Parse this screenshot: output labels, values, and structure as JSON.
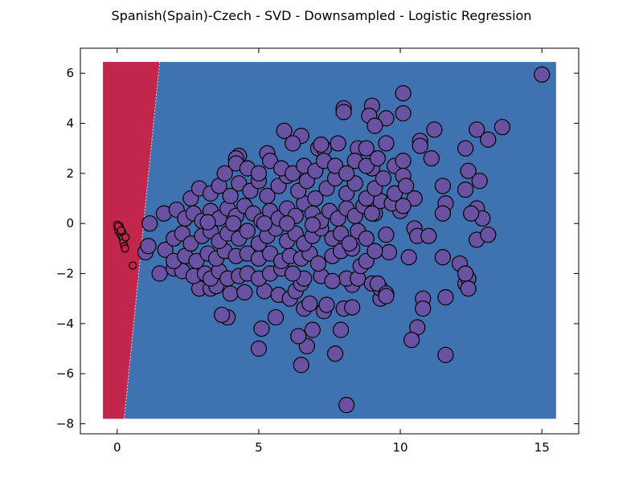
{
  "chart_data": {
    "type": "scatter",
    "title": "Spanish(Spain)-Czech - SVD - Downsampled - Logistic Regression",
    "xlabel": "",
    "ylabel": "",
    "xlim": [
      -1.3,
      16.3
    ],
    "ylim": [
      -8.4,
      7.0
    ],
    "xticks": [
      0,
      5,
      10,
      15
    ],
    "yticks": [
      -8,
      -6,
      -4,
      -2,
      0,
      2,
      4,
      6
    ],
    "xtick_labels": [
      "0",
      "5",
      "10",
      "15"
    ],
    "ytick_labels": [
      "−8",
      "−6",
      "−4",
      "−2",
      "0",
      "2",
      "4",
      "6"
    ],
    "grid": false,
    "legend": "none",
    "decision_region": {
      "x_range": [
        -0.5,
        15.5
      ],
      "y_range": [
        -7.8,
        6.45
      ],
      "boundary_bottom": [
        0.25,
        -7.8
      ],
      "boundary_top": [
        1.5,
        6.45
      ],
      "left_class_color": "#c2264a",
      "right_class_color": "#3f72b1"
    },
    "series": [
      {
        "color": "#c2264a",
        "marker_size": "small",
        "points": [
          [
            0.0,
            -0.05
          ],
          [
            0.02,
            -0.18
          ],
          [
            0.05,
            -0.3
          ],
          [
            0.08,
            -0.1
          ],
          [
            0.1,
            -0.4
          ],
          [
            0.12,
            -0.22
          ],
          [
            0.15,
            -0.5
          ],
          [
            0.18,
            -0.35
          ],
          [
            0.2,
            -0.6
          ],
          [
            0.22,
            -0.75
          ],
          [
            0.25,
            -0.9
          ],
          [
            0.28,
            -1.0
          ],
          [
            0.3,
            -0.55
          ],
          [
            0.04,
            -0.12
          ],
          [
            0.14,
            -0.28
          ],
          [
            0.55,
            -1.68
          ]
        ]
      },
      {
        "color": "#6a52a3",
        "marker_size": "large",
        "points": [
          [
            15.0,
            5.95
          ],
          [
            10.1,
            5.2
          ],
          [
            8.0,
            4.6
          ],
          [
            8.0,
            4.45
          ],
          [
            9.0,
            4.7
          ],
          [
            8.9,
            4.3
          ],
          [
            10.1,
            4.4
          ],
          [
            9.5,
            4.2
          ],
          [
            9.1,
            3.9
          ],
          [
            5.9,
            3.7
          ],
          [
            6.5,
            3.5
          ],
          [
            12.7,
            3.75
          ],
          [
            13.6,
            3.85
          ],
          [
            11.2,
            3.75
          ],
          [
            13.1,
            3.35
          ],
          [
            10.7,
            3.3
          ],
          [
            10.7,
            3.1
          ],
          [
            7.1,
            3.0
          ],
          [
            7.3,
            3.0
          ],
          [
            7.8,
            3.2
          ],
          [
            8.5,
            3.0
          ],
          [
            9.5,
            3.2
          ],
          [
            6.2,
            3.2
          ],
          [
            12.3,
            3.0
          ],
          [
            11.1,
            2.6
          ],
          [
            4.3,
            2.7
          ],
          [
            5.3,
            2.8
          ],
          [
            4.2,
            2.6
          ],
          [
            7.2,
            3.15
          ],
          [
            8.8,
            3.0
          ],
          [
            9.0,
            2.2
          ],
          [
            9.8,
            2.3
          ],
          [
            10.1,
            2.5
          ],
          [
            12.4,
            2.1
          ],
          [
            12.8,
            1.7
          ],
          [
            10.1,
            1.9
          ],
          [
            11.5,
            1.5
          ],
          [
            12.3,
            1.35
          ],
          [
            10.5,
            1.0
          ],
          [
            11.6,
            0.8
          ],
          [
            12.7,
            0.6
          ],
          [
            11.5,
            0.4
          ],
          [
            12.9,
            0.2
          ],
          [
            12.5,
            0.4
          ],
          [
            9.1,
            0.4
          ],
          [
            10.0,
            0.5
          ],
          [
            10.5,
            -0.2
          ],
          [
            10.6,
            -0.5
          ],
          [
            11.0,
            -0.5
          ],
          [
            12.7,
            -0.65
          ],
          [
            13.1,
            -0.45
          ],
          [
            9.6,
            -1.15
          ],
          [
            10.3,
            -1.35
          ],
          [
            11.5,
            -1.35
          ],
          [
            12.1,
            -1.6
          ],
          [
            12.3,
            -2.4
          ],
          [
            12.4,
            -2.2
          ],
          [
            12.3,
            -2.0
          ],
          [
            12.4,
            -2.6
          ],
          [
            11.6,
            -2.95
          ],
          [
            10.8,
            -3.0
          ],
          [
            10.8,
            -3.4
          ],
          [
            10.6,
            -4.15
          ],
          [
            10.4,
            -4.65
          ],
          [
            11.6,
            -5.25
          ],
          [
            8.1,
            -7.25
          ],
          [
            7.7,
            -5.2
          ],
          [
            6.5,
            -5.65
          ],
          [
            5.0,
            -5.0
          ],
          [
            5.1,
            -4.2
          ],
          [
            6.7,
            -4.9
          ],
          [
            6.9,
            -4.25
          ],
          [
            6.4,
            -4.5
          ],
          [
            7.9,
            -4.25
          ],
          [
            5.6,
            -3.75
          ],
          [
            3.9,
            -3.75
          ],
          [
            3.7,
            -3.65
          ],
          [
            7.3,
            -3.5
          ],
          [
            6.6,
            -3.4
          ],
          [
            6.8,
            -3.2
          ],
          [
            7.4,
            -3.25
          ],
          [
            8.0,
            -3.4
          ],
          [
            8.3,
            -3.35
          ],
          [
            9.3,
            -3.0
          ],
          [
            8.3,
            -2.45
          ],
          [
            8.1,
            -2.2
          ],
          [
            8.5,
            -2.2
          ],
          [
            9.0,
            -2.4
          ],
          [
            9.3,
            -2.6
          ],
          [
            9.2,
            -2.4
          ],
          [
            9.5,
            -2.8
          ],
          [
            9.5,
            -2.9
          ],
          [
            2.9,
            -2.6
          ],
          [
            3.3,
            -2.6
          ],
          [
            3.5,
            -2.5
          ],
          [
            4.0,
            -2.8
          ],
          [
            4.5,
            -2.75
          ],
          [
            5.2,
            -2.7
          ],
          [
            5.7,
            -2.85
          ],
          [
            6.1,
            -3.0
          ],
          [
            6.3,
            -2.7
          ],
          [
            6.5,
            -2.4
          ],
          [
            6.6,
            -2.2
          ],
          [
            7.2,
            -2.1
          ],
          [
            7.6,
            -2.3
          ],
          [
            1.5,
            -2.0
          ],
          [
            2.0,
            -1.8
          ],
          [
            2.3,
            -1.9
          ],
          [
            2.7,
            -2.1
          ],
          [
            3.1,
            -2.0
          ],
          [
            3.3,
            -2.2
          ],
          [
            3.6,
            -1.9
          ],
          [
            3.9,
            -2.2
          ],
          [
            4.3,
            -2.1
          ],
          [
            4.6,
            -2.0
          ],
          [
            5.0,
            -2.2
          ],
          [
            5.4,
            -2.0
          ],
          [
            5.8,
            -1.8
          ],
          [
            6.2,
            -2.0
          ],
          [
            1.0,
            -1.15
          ],
          [
            1.1,
            -0.9
          ],
          [
            1.7,
            -1.05
          ],
          [
            2.0,
            -1.5
          ],
          [
            2.4,
            -1.3
          ],
          [
            2.8,
            -1.5
          ],
          [
            3.2,
            -1.2
          ],
          [
            3.5,
            -1.4
          ],
          [
            3.8,
            -1.1
          ],
          [
            4.2,
            -1.3
          ],
          [
            4.6,
            -1.2
          ],
          [
            5.0,
            -1.4
          ],
          [
            5.4,
            -1.2
          ],
          [
            5.8,
            -1.5
          ],
          [
            6.1,
            -1.3
          ],
          [
            6.5,
            -1.4
          ],
          [
            6.8,
            -1.2
          ],
          [
            7.1,
            -1.6
          ],
          [
            7.6,
            -1.3
          ],
          [
            7.9,
            -1.1
          ],
          [
            8.3,
            -1.0
          ],
          [
            8.6,
            -1.7
          ],
          [
            8.8,
            -1.5
          ],
          [
            9.1,
            -1.1
          ],
          [
            2.0,
            -0.6
          ],
          [
            2.3,
            -0.4
          ],
          [
            2.6,
            -0.8
          ],
          [
            3.0,
            -0.5
          ],
          [
            3.3,
            -0.3
          ],
          [
            3.6,
            -0.7
          ],
          [
            3.9,
            -0.4
          ],
          [
            4.3,
            -0.6
          ],
          [
            4.6,
            -0.3
          ],
          [
            5.0,
            -0.8
          ],
          [
            5.3,
            -0.5
          ],
          [
            5.6,
            -0.2
          ],
          [
            6.0,
            -0.7
          ],
          [
            6.3,
            -0.4
          ],
          [
            6.6,
            -0.8
          ],
          [
            6.9,
            -0.5
          ],
          [
            7.2,
            -0.2
          ],
          [
            7.6,
            -0.6
          ],
          [
            7.9,
            -0.4
          ],
          [
            8.2,
            -0.8
          ],
          [
            8.5,
            -0.3
          ],
          [
            8.8,
            -0.6
          ],
          [
            9.5,
            -0.45
          ],
          [
            1.15,
            0.0
          ],
          [
            1.65,
            0.4
          ],
          [
            2.1,
            0.55
          ],
          [
            2.4,
            0.2
          ],
          [
            2.7,
            0.4
          ],
          [
            3.0,
            0.1
          ],
          [
            3.3,
            0.5
          ],
          [
            3.6,
            0.2
          ],
          [
            3.9,
            0.6
          ],
          [
            4.2,
            0.3
          ],
          [
            4.5,
            0.7
          ],
          [
            4.8,
            0.4
          ],
          [
            5.1,
            0.1
          ],
          [
            5.4,
            0.5
          ],
          [
            5.7,
            0.2
          ],
          [
            6.0,
            0.6
          ],
          [
            6.3,
            0.3
          ],
          [
            6.6,
            0.8
          ],
          [
            6.9,
            0.4
          ],
          [
            7.2,
            0.1
          ],
          [
            7.5,
            0.5
          ],
          [
            7.8,
            0.2
          ],
          [
            8.1,
            0.6
          ],
          [
            8.4,
            0.3
          ],
          [
            8.7,
            0.7
          ],
          [
            9.0,
            0.4
          ],
          [
            9.3,
            0.9
          ],
          [
            9.7,
            0.8
          ],
          [
            10.1,
            0.7
          ],
          [
            2.6,
            1.0
          ],
          [
            2.9,
            1.4
          ],
          [
            3.3,
            1.2
          ],
          [
            3.6,
            1.5
          ],
          [
            4.0,
            1.1
          ],
          [
            4.3,
            1.6
          ],
          [
            4.7,
            1.3
          ],
          [
            5.0,
            1.7
          ],
          [
            5.3,
            1.1
          ],
          [
            5.7,
            1.5
          ],
          [
            6.0,
            1.9
          ],
          [
            6.4,
            1.3
          ],
          [
            6.7,
            1.7
          ],
          [
            7.0,
            1.0
          ],
          [
            7.4,
            1.4
          ],
          [
            7.7,
            1.8
          ],
          [
            8.1,
            1.2
          ],
          [
            8.4,
            1.6
          ],
          [
            8.8,
            1.0
          ],
          [
            9.1,
            1.4
          ],
          [
            9.4,
            1.8
          ],
          [
            9.8,
            1.2
          ],
          [
            10.2,
            1.5
          ],
          [
            3.8,
            2.0
          ],
          [
            4.2,
            2.4
          ],
          [
            4.6,
            2.2
          ],
          [
            5.0,
            2.0
          ],
          [
            5.4,
            2.5
          ],
          [
            5.8,
            2.2
          ],
          [
            6.2,
            2.0
          ],
          [
            6.6,
            2.3
          ],
          [
            7.0,
            2.1
          ],
          [
            7.3,
            2.5
          ],
          [
            7.7,
            2.3
          ],
          [
            8.1,
            2.0
          ],
          [
            8.4,
            2.5
          ],
          [
            8.8,
            2.3
          ],
          [
            9.2,
            2.6
          ],
          [
            6.0,
            0.0
          ],
          [
            6.9,
            -0.05
          ],
          [
            5.2,
            0.0
          ],
          [
            4.1,
            0.0
          ],
          [
            3.2,
            0.05
          ]
        ]
      }
    ]
  }
}
